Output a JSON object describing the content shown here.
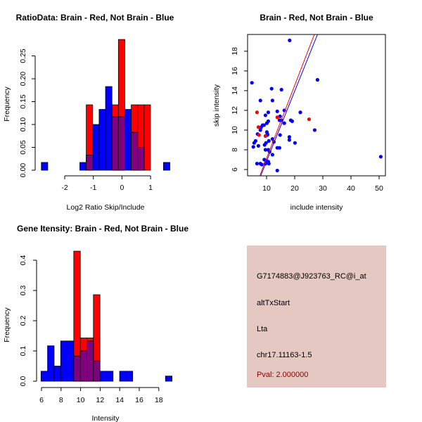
{
  "colors": {
    "brain": "#ff0000",
    "not_brain": "#0000ff",
    "overlap": "#800080",
    "info_bg": "#e5c8c2",
    "pval": "#8b0000"
  },
  "chart_data": [
    {
      "type": "bar",
      "title": "RatioData: Brain - Red, Not Brain - Blue",
      "xlabel": "Log2 Ratio Skip/Include",
      "ylabel": "Frequency",
      "xticks": [
        "-2",
        "-1",
        "0",
        "1"
      ],
      "xtick_values": [
        -2,
        -1,
        0,
        1
      ],
      "yticks": [
        "0.00",
        "0.05",
        "0.10",
        "0.15",
        "0.20",
        "0.25"
      ],
      "ytick_values": [
        0,
        0.05,
        0.1,
        0.15,
        0.2,
        0.25
      ],
      "series": [
        {
          "name": "Not Brain",
          "bins": [
            [
              -2.8165,
              -2.592,
              0.017
            ],
            [
              -1.4715,
              -1.247,
              0.017
            ],
            [
              -1.247,
              -1.0225,
              0.033
            ],
            [
              -1.0225,
              -0.798,
              0.1
            ],
            [
              -0.798,
              -0.5735,
              0.133
            ],
            [
              -0.5735,
              -0.349,
              0.183
            ],
            [
              -0.349,
              -0.1245,
              0.117
            ],
            [
              -0.1245,
              0.1,
              0.117
            ],
            [
              0.1,
              0.3245,
              0.133
            ],
            [
              0.3245,
              0.549,
              0.083
            ],
            [
              0.549,
              0.7735,
              0.05
            ],
            [
              1.449,
              1.6735,
              0.017
            ]
          ]
        },
        {
          "name": "Brain",
          "bins": [
            [
              -1.247,
              -1.0225,
              0.143
            ],
            [
              -0.349,
              -0.1245,
              0.143
            ],
            [
              -0.1245,
              0.1,
              0.286
            ],
            [
              0.3245,
              0.549,
              0.143
            ],
            [
              0.549,
              0.7735,
              0.143
            ],
            [
              0.7735,
              0.998,
              0.143
            ]
          ]
        }
      ]
    },
    {
      "type": "scatter",
      "title": "Brain - Red, Not Brain - Blue",
      "xlabel": "include intensity",
      "ylabel": "skip intensity",
      "xlim": [
        3.25,
        52.25
      ],
      "ylim": [
        5.36,
        19.7
      ],
      "xticks": [
        "10",
        "20",
        "30",
        "40",
        "50"
      ],
      "xtick_values": [
        10,
        20,
        30,
        40,
        50
      ],
      "yticks": [
        "6",
        "8",
        "10",
        "12",
        "14",
        "16",
        "18"
      ],
      "ytick_values": [
        6,
        8,
        10,
        12,
        14,
        16,
        18
      ],
      "series": [
        {
          "name": "Not Brain",
          "points": [
            [
              18.2,
              19.1
            ],
            [
              4.8,
              14.8
            ],
            [
              28.1,
              15.1
            ],
            [
              11.8,
              14.2
            ],
            [
              15.3,
              14.1
            ],
            [
              7.8,
              13.0
            ],
            [
              12.1,
              13.0
            ],
            [
              10.6,
              11.8
            ],
            [
              13.8,
              11.9
            ],
            [
              16.3,
              12.0
            ],
            [
              22.0,
              11.8
            ],
            [
              9.6,
              11.5
            ],
            [
              14.8,
              11.4
            ],
            [
              18.6,
              11.0
            ],
            [
              19.1,
              10.9
            ],
            [
              14.6,
              11.0
            ],
            [
              15.3,
              11.0
            ],
            [
              16.3,
              10.7
            ],
            [
              10.6,
              10.9
            ],
            [
              10.1,
              10.7
            ],
            [
              9.1,
              10.5
            ],
            [
              8.6,
              10.5
            ],
            [
              8.1,
              10.3
            ],
            [
              7.8,
              10.0
            ],
            [
              27.1,
              10.0
            ],
            [
              10.1,
              9.8
            ],
            [
              10.3,
              9.6
            ],
            [
              10.3,
              9.5
            ],
            [
              6.8,
              9.6
            ],
            [
              14.8,
              9.5
            ],
            [
              6.1,
              8.9
            ],
            [
              5.6,
              8.7
            ],
            [
              5.3,
              8.3
            ],
            [
              7.1,
              8.4
            ],
            [
              9.8,
              8.7
            ],
            [
              9.3,
              8.5
            ],
            [
              10.8,
              8.9
            ],
            [
              12.6,
              8.8
            ],
            [
              12.1,
              9.1
            ],
            [
              18.1,
              9.3
            ],
            [
              18.1,
              9.0
            ],
            [
              20.1,
              8.7
            ],
            [
              9.6,
              8.0
            ],
            [
              10.6,
              8.0
            ],
            [
              11.1,
              7.8
            ],
            [
              13.8,
              8.2
            ],
            [
              14.6,
              8.2
            ],
            [
              12.1,
              7.5
            ],
            [
              9.2,
              7.0
            ],
            [
              9.8,
              6.9
            ],
            [
              10.6,
              6.8
            ],
            [
              6.6,
              6.6
            ],
            [
              7.8,
              6.6
            ],
            [
              8.3,
              6.5
            ],
            [
              9.6,
              6.6
            ],
            [
              10.8,
              6.6
            ],
            [
              13.8,
              5.9
            ],
            [
              50.6,
              7.3
            ]
          ],
          "fit": {
            "slope": 0.71,
            "intercept": -0.25
          }
        },
        {
          "name": "Brain",
          "points": [
            [
              6.6,
              11.8
            ],
            [
              7.1,
              10.3
            ],
            [
              7.3,
              9.5
            ],
            [
              9.6,
              9.4
            ],
            [
              13.8,
              11.3
            ],
            [
              25.1,
              11.1
            ]
          ],
          "fit": {
            "slope": 0.74,
            "intercept": -0.26
          }
        }
      ]
    },
    {
      "type": "bar",
      "title": "Gene Itensity: Brain - Red, Not Brain - Blue",
      "xlabel": "Intensity",
      "ylabel": "Frequency",
      "xticks": [
        "6",
        "8",
        "10",
        "12",
        "14",
        "16",
        "18"
      ],
      "xtick_values": [
        6,
        8,
        10,
        12,
        14,
        16,
        18
      ],
      "yticks": [
        "0.0",
        "0.1",
        "0.2",
        "0.3",
        "0.4"
      ],
      "ytick_values": [
        0,
        0.1,
        0.2,
        0.3,
        0.4
      ],
      "series": [
        {
          "name": "Not Brain",
          "bins": [
            [
              5.95,
              6.62,
              0.033
            ],
            [
              6.62,
              7.29,
              0.117
            ],
            [
              7.29,
              7.96,
              0.05
            ],
            [
              7.96,
              8.63,
              0.133
            ],
            [
              8.63,
              9.3,
              0.133
            ],
            [
              9.3,
              9.97,
              0.083
            ],
            [
              9.97,
              10.64,
              0.1
            ],
            [
              10.64,
              11.31,
              0.133
            ],
            [
              11.31,
              11.98,
              0.067
            ],
            [
              11.98,
              12.65,
              0.033
            ],
            [
              12.65,
              13.32,
              0.033
            ],
            [
              13.99,
              14.66,
              0.033
            ],
            [
              14.66,
              15.33,
              0.033
            ],
            [
              18.68,
              19.35,
              0.017
            ]
          ]
        },
        {
          "name": "Brain",
          "bins": [
            [
              9.3,
              9.97,
              0.43
            ],
            [
              9.97,
              10.64,
              0.143
            ],
            [
              10.64,
              11.31,
              0.143
            ],
            [
              11.31,
              11.98,
              0.286
            ]
          ]
        }
      ]
    }
  ],
  "info": {
    "probe_id": "G7174883@J923763_RC@i_at",
    "event_type": "altTxStart",
    "gene": "Lta",
    "location": "chr17.11163-1.5",
    "pval": "Pval: 2.000000"
  }
}
